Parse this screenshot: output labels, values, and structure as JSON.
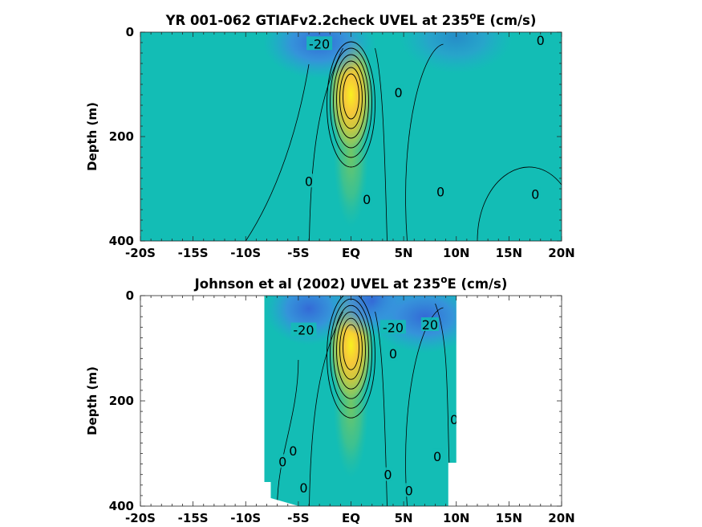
{
  "chart_data": [
    {
      "type": "heatmap",
      "title": "YR 001-062 GTIAFv2.2check UVEL at 235",
      "title_sup": "o",
      "title_tail": "E (cm/s)",
      "ylabel": "Depth (m)",
      "xlim": [
        -20,
        20
      ],
      "ylim": [
        0,
        400
      ],
      "y_reversed": true,
      "x_ticks": [
        -20,
        -15,
        -10,
        -5,
        0,
        5,
        10,
        15,
        20
      ],
      "x_tick_labels": [
        "-20S",
        "-15S",
        "-10S",
        "-5S",
        "EQ",
        "5N",
        "10N",
        "15N",
        "20N"
      ],
      "y_ticks": [
        0,
        200,
        400
      ],
      "y_tick_labels": [
        "0",
        "200",
        "400"
      ],
      "data_lon_range": [
        -20,
        20
      ],
      "colormap": "parula",
      "features": [
        {
          "kind": "eastward_undercurrent",
          "lon": 0,
          "depth": 120,
          "value": 100
        },
        {
          "kind": "westward_surface_current",
          "lon": -3,
          "depth": 20,
          "value": -25
        },
        {
          "kind": "westward_surface_current",
          "lon": 10,
          "depth": 10,
          "value": -10
        }
      ],
      "contour_labels": [
        {
          "text": "-20",
          "lon": -3,
          "depth": 22
        },
        {
          "text": "0",
          "lon": 18,
          "depth": 15
        },
        {
          "text": "0",
          "lon": 4.5,
          "depth": 115
        },
        {
          "text": "0",
          "lon": -4,
          "depth": 285
        },
        {
          "text": "0",
          "lon": 1.5,
          "depth": 320
        },
        {
          "text": "0",
          "lon": 8.5,
          "depth": 305
        },
        {
          "text": "0",
          "lon": 17.5,
          "depth": 310
        }
      ]
    },
    {
      "type": "heatmap",
      "title": "Johnson et al (2002) UVEL at 235",
      "title_sup": "o",
      "title_tail": "E (cm/s)",
      "ylabel": "Depth (m)",
      "xlim": [
        -20,
        20
      ],
      "ylim": [
        0,
        400
      ],
      "y_reversed": true,
      "x_ticks": [
        -20,
        -15,
        -10,
        -5,
        0,
        5,
        10,
        15,
        20
      ],
      "x_tick_labels": [
        "-20S",
        "-15S",
        "-10S",
        "-5S",
        "EQ",
        "5N",
        "10N",
        "15N",
        "20N"
      ],
      "y_ticks": [
        0,
        200,
        400
      ],
      "y_tick_labels": [
        "0",
        "200",
        "400"
      ],
      "data_lon_range": [
        -8,
        10
      ],
      "colormap": "parula",
      "features": [
        {
          "kind": "eastward_undercurrent",
          "lon": 0,
          "depth": 95,
          "value": 100
        },
        {
          "kind": "westward_surface_current",
          "lon": -4,
          "depth": 25,
          "value": -30
        },
        {
          "kind": "westward_surface_current",
          "lon": 2,
          "depth": 10,
          "value": -40
        },
        {
          "kind": "westward_surface_current",
          "lon": 7,
          "depth": 40,
          "value": -20
        }
      ],
      "contour_labels": [
        {
          "text": "-20",
          "lon": -4.5,
          "depth": 65
        },
        {
          "text": "-20",
          "lon": 4,
          "depth": 60
        },
        {
          "text": "20",
          "lon": 7.5,
          "depth": 55
        },
        {
          "text": "0",
          "lon": 4,
          "depth": 110
        },
        {
          "text": "0",
          "lon": 9.8,
          "depth": 235
        },
        {
          "text": "0",
          "lon": -6.5,
          "depth": 315
        },
        {
          "text": "0",
          "lon": -5.5,
          "depth": 295
        },
        {
          "text": "0",
          "lon": 8.2,
          "depth": 305
        },
        {
          "text": "0",
          "lon": 3.5,
          "depth": 340
        },
        {
          "text": "0",
          "lon": -4.5,
          "depth": 365
        },
        {
          "text": "0",
          "lon": 5.5,
          "depth": 370
        }
      ]
    }
  ],
  "colors": {
    "background_field": "#13bdb5",
    "west_strong": "#3d7de0",
    "east_core": "#f7e034",
    "contour": "#000000"
  }
}
